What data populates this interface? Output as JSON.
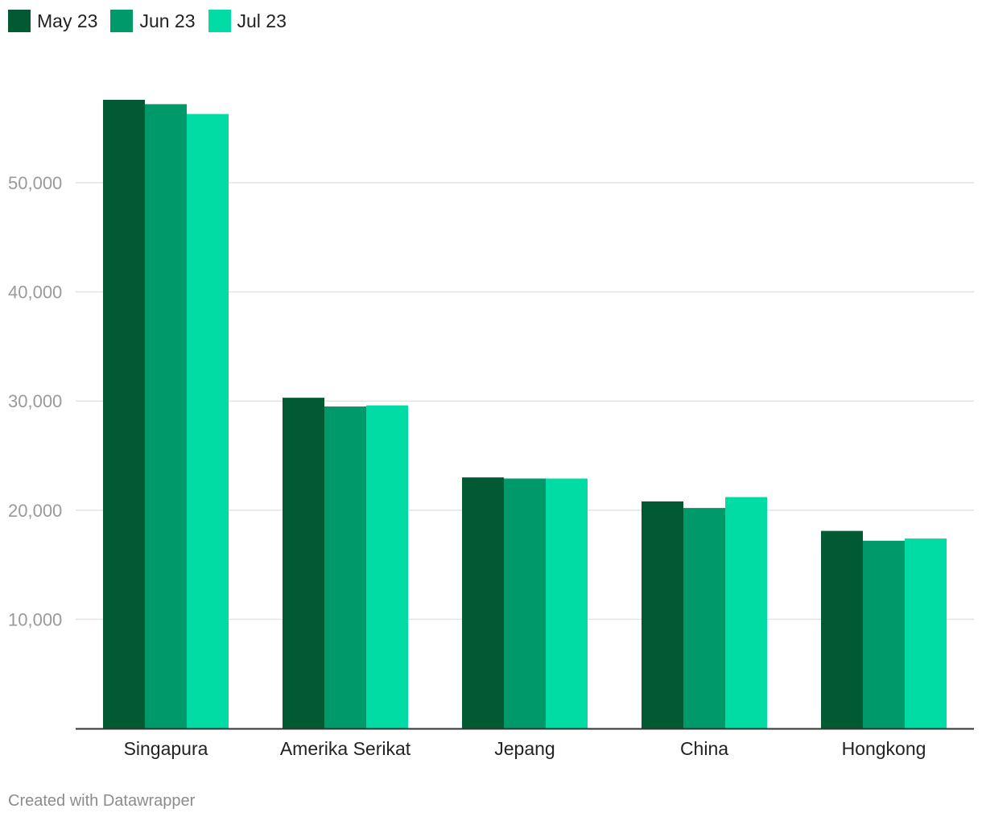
{
  "legend": {
    "items": [
      {
        "label": "May 23",
        "color": "#025a32"
      },
      {
        "label": "Jun 23",
        "color": "#009a6a"
      },
      {
        "label": "Jul 23",
        "color": "#00dca4"
      }
    ]
  },
  "footer": {
    "credit": "Created with Datawrapper"
  },
  "chart_data": {
    "type": "bar",
    "title": "",
    "xlabel": "",
    "ylabel": "",
    "categories": [
      "Singapura",
      "Amerika Serikat",
      "Jepang",
      "China",
      "Hongkong"
    ],
    "series": [
      {
        "name": "May 23",
        "color": "#025a32",
        "values": [
          57600,
          30300,
          23000,
          20800,
          18100
        ]
      },
      {
        "name": "Jun 23",
        "color": "#009a6a",
        "values": [
          57200,
          29500,
          22900,
          20200,
          17200
        ]
      },
      {
        "name": "Jul 23",
        "color": "#00dca4",
        "values": [
          56300,
          29600,
          22900,
          21200,
          17400
        ]
      }
    ],
    "ylim": [
      0,
      57600
    ],
    "yticks": [
      10000,
      20000,
      30000,
      40000,
      50000
    ],
    "ytick_labels": [
      "10,000",
      "20,000",
      "30,000",
      "40,000",
      "50,000"
    ],
    "grid": true,
    "legend_position": "top-left"
  }
}
